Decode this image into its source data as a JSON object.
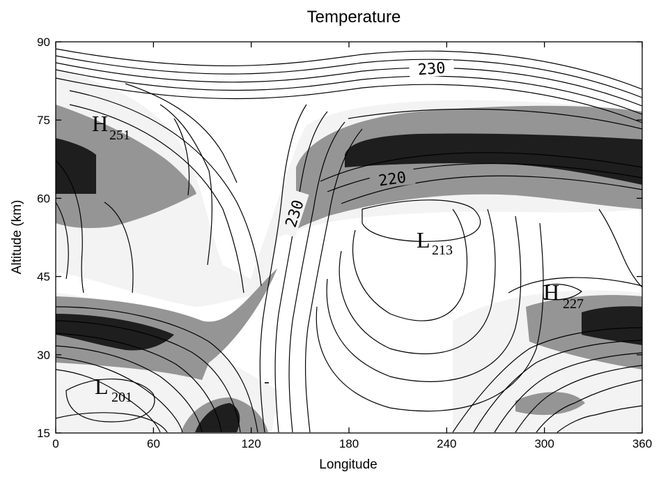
{
  "chart_data": {
    "type": "contour",
    "title": "Temperature",
    "xlabel": "Longitude",
    "ylabel": "Altitude (km)",
    "xlim": [
      0,
      360
    ],
    "ylim": [
      15,
      90
    ],
    "xticks": [
      0,
      60,
      120,
      180,
      240,
      300,
      360
    ],
    "yticks": [
      15,
      30,
      45,
      60,
      75,
      90
    ],
    "shading": {
      "levels": [
        "light",
        "medium",
        "dark"
      ],
      "colors": [
        "#f3f3f3",
        "#959595",
        "#1e1e1e"
      ]
    },
    "extrema": [
      {
        "kind": "H",
        "value": "251",
        "lon": 18,
        "alt": 75
      },
      {
        "kind": "L",
        "value": "213",
        "lon": 232,
        "alt": 51
      },
      {
        "kind": "H",
        "value": "227",
        "lon": 305,
        "alt": 40
      },
      {
        "kind": "L",
        "value": "201",
        "lon": 24,
        "alt": 22
      }
    ],
    "contour_labels": [
      {
        "text": "230",
        "lon": 228,
        "alt": 86
      },
      {
        "text": "220",
        "lon": 222,
        "alt": 62
      },
      {
        "text": "230",
        "lon": 147,
        "alt": 57
      }
    ]
  }
}
